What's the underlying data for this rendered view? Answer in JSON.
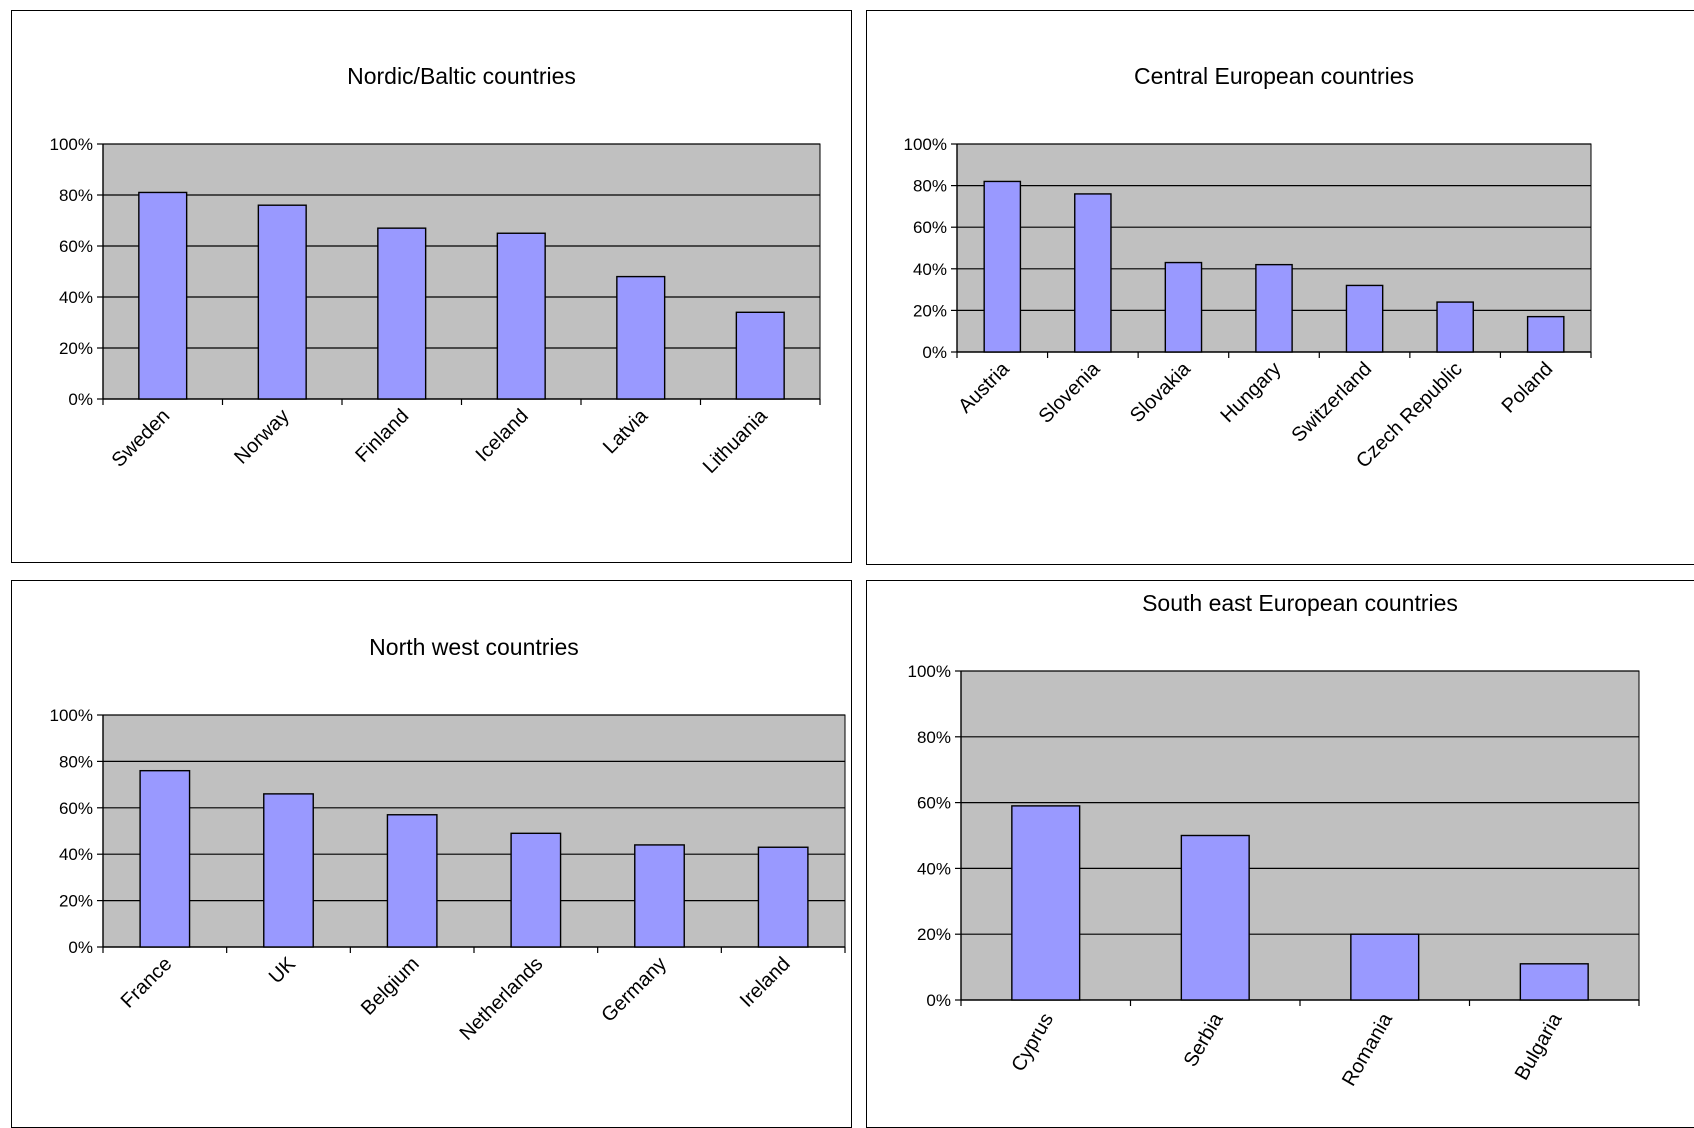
{
  "colors": {
    "plot_background": "#c0c0c0",
    "bar_fill": "#9999ff",
    "gridline": "#000000",
    "border": "#000000"
  },
  "chart_data": [
    {
      "type": "bar",
      "title": "Nordic/Baltic countries",
      "categories": [
        "Sweden",
        "Norway",
        "Finland",
        "Iceland",
        "Latvia",
        "Lithuania"
      ],
      "values": [
        81,
        76,
        67,
        65,
        48,
        34
      ],
      "ylim": [
        0,
        100
      ],
      "yticks": [
        "0%",
        "20%",
        "40%",
        "60%",
        "80%",
        "100%"
      ],
      "grid": true,
      "legend": "none"
    },
    {
      "type": "bar",
      "title": "Central European countries",
      "categories": [
        "Austria",
        "Slovenia",
        "Slovakia",
        "Hungary",
        "Switzerland",
        "Czech Republic",
        "Poland"
      ],
      "values": [
        82,
        76,
        43,
        42,
        32,
        24,
        17
      ],
      "ylim": [
        0,
        100
      ],
      "yticks": [
        "0%",
        "20%",
        "40%",
        "60%",
        "80%",
        "100%"
      ],
      "grid": true,
      "legend": "none"
    },
    {
      "type": "bar",
      "title": "North west countries",
      "categories": [
        "France",
        "UK",
        "Belgium",
        "Netherlands",
        "Germany",
        "Ireland"
      ],
      "values": [
        76,
        66,
        57,
        49,
        44,
        43
      ],
      "ylim": [
        0,
        100
      ],
      "yticks": [
        "0%",
        "20%",
        "40%",
        "60%",
        "80%",
        "100%"
      ],
      "grid": true,
      "legend": "none"
    },
    {
      "type": "bar",
      "title": "South east European countries",
      "categories": [
        "Cyprus",
        "Serbia",
        "Romania",
        "Bulgaria"
      ],
      "values": [
        59,
        50,
        20,
        11
      ],
      "ylim": [
        0,
        100
      ],
      "yticks": [
        "0%",
        "20%",
        "40%",
        "60%",
        "80%",
        "100%"
      ],
      "grid": true,
      "legend": "none"
    }
  ]
}
